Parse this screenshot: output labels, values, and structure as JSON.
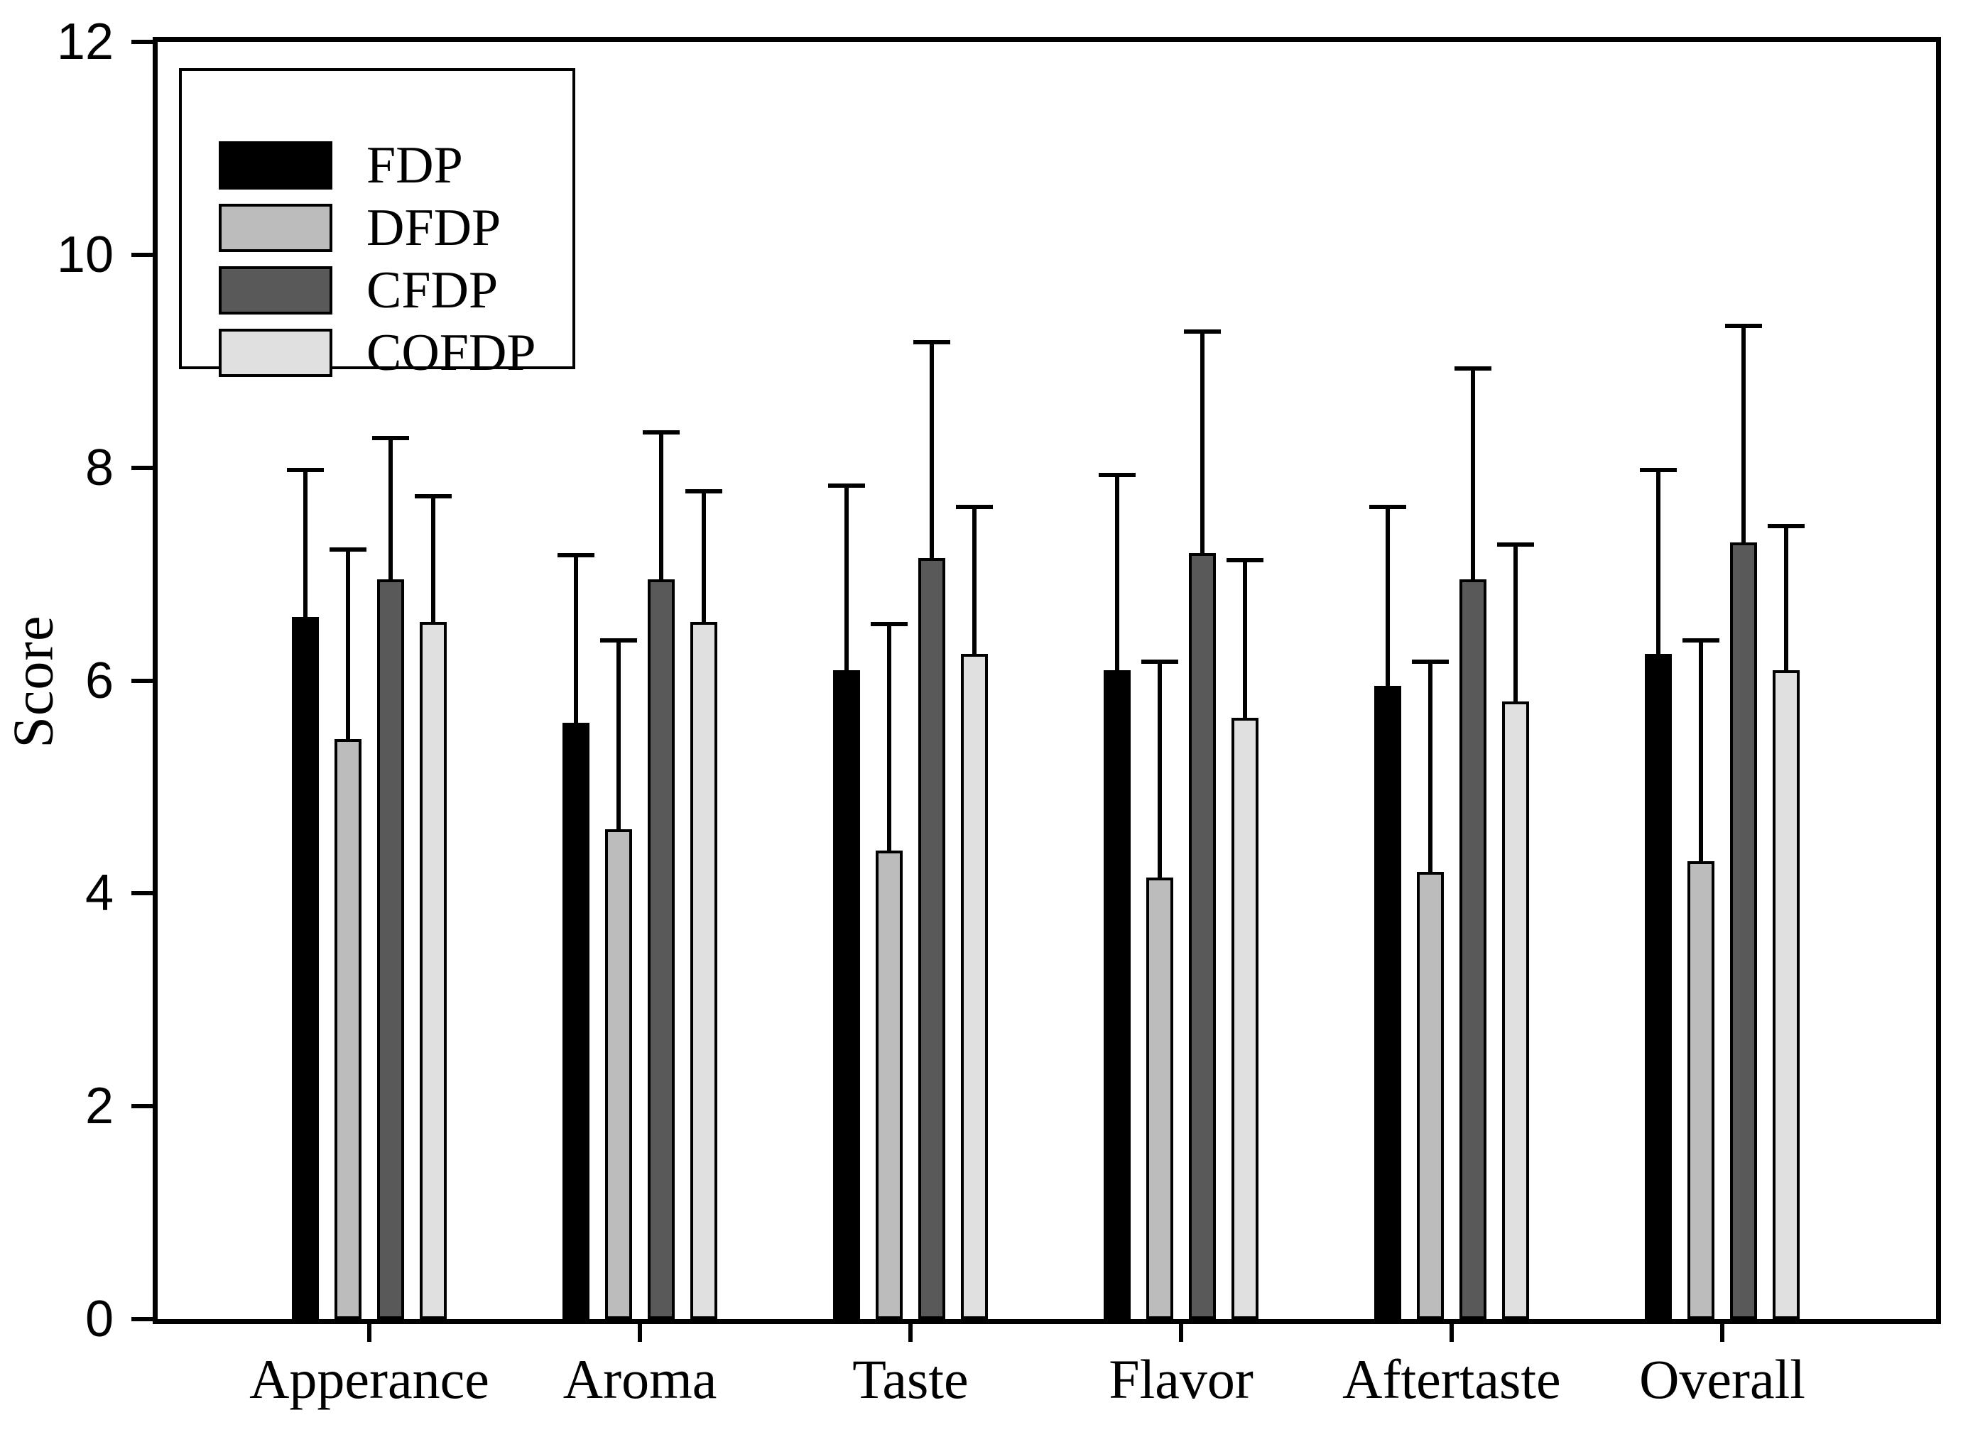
{
  "chart_data": {
    "type": "bar",
    "subtype": "grouped-vertical-with-error-bars",
    "title": "",
    "xlabel": "",
    "ylabel": "Score",
    "ylim": [
      0,
      12
    ],
    "yticks": [
      0,
      2,
      4,
      6,
      8,
      10,
      12
    ],
    "grid": false,
    "frame": "full-box",
    "error_bars": "upper-only-T-caps",
    "legend_position": "inside-upper-left",
    "axis_color": "#000000",
    "background_color": "#ffffff",
    "categories": [
      "Apperance",
      "Aroma",
      "Taste",
      "Flavor",
      "Aftertaste",
      "Overall"
    ],
    "series": [
      {
        "name": "FDP",
        "color": "#000000",
        "values": [
          6.6,
          5.6,
          6.1,
          6.1,
          5.95,
          6.25
        ],
        "errors_plus": [
          1.4,
          1.6,
          1.75,
          1.85,
          1.7,
          1.75
        ]
      },
      {
        "name": "DFDP",
        "color": "#bcbcbc",
        "values": [
          5.45,
          4.6,
          4.4,
          4.15,
          4.2,
          4.3
        ],
        "errors_plus": [
          1.8,
          1.8,
          2.15,
          2.05,
          2.0,
          2.1
        ]
      },
      {
        "name": "CFDP",
        "color": "#595959",
        "values": [
          6.95,
          6.95,
          7.15,
          7.2,
          6.95,
          7.3
        ],
        "errors_plus": [
          1.35,
          1.4,
          2.05,
          2.1,
          2.0,
          2.05
        ]
      },
      {
        "name": "COFDP",
        "color": "#e0e0e0",
        "values": [
          6.55,
          6.55,
          6.25,
          5.65,
          5.8,
          6.1
        ],
        "errors_plus": [
          1.2,
          1.25,
          1.4,
          1.5,
          1.5,
          1.37
        ]
      }
    ]
  }
}
